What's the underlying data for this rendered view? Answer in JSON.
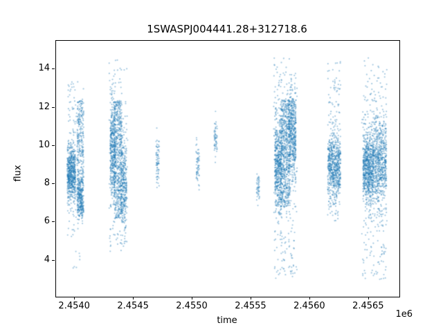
{
  "chart": {
    "title": "1SWASPJ004441.28+312718.6",
    "xlabel": "time",
    "ylabel": "flux",
    "x_offset_text": "1e6"
  },
  "chart_data": {
    "type": "scatter",
    "title": "1SWASPJ004441.28+312718.6",
    "xlabel": "time",
    "ylabel": "flux",
    "x_offset_text": "1e6",
    "xlim": [
      2453840,
      2456760
    ],
    "ylim": [
      2.1,
      15.5
    ],
    "grid": false,
    "legend": "none",
    "marker_color": "#1f77b4",
    "marker_alpha": 0.4,
    "marker_radius_px": 1.1,
    "xticks": {
      "values": [
        2454000,
        2454500,
        2455000,
        2455500,
        2456000,
        2456500
      ],
      "labels": [
        "2.4540",
        "2.4545",
        "2.4550",
        "2.4555",
        "2.4560",
        "2.4565"
      ]
    },
    "yticks": {
      "values": [
        4,
        6,
        8,
        10,
        12,
        14
      ],
      "labels": [
        "4",
        "6",
        "8",
        "10",
        "12",
        "14"
      ]
    },
    "description": "SuperWASP light curve: dense vertical clusters of flux measurements at several observing seasons",
    "clusters": [
      {
        "n": 550,
        "x": [
          2453935,
          2454005
        ],
        "y": {
          "type": "normal",
          "mean": 8.6,
          "sd": 0.7
        }
      },
      {
        "n": 80,
        "x": [
          2453935,
          2454010
        ],
        "y": {
          "type": "uniform",
          "min": 5.2,
          "max": 13.4
        }
      },
      {
        "n": 380,
        "x": [
          2454020,
          2454075
        ],
        "y": {
          "type": "uniform",
          "min": 6.3,
          "max": 12.4
        }
      },
      {
        "n": 180,
        "x": [
          2454020,
          2454070
        ],
        "y": {
          "type": "normal",
          "mean": 7.3,
          "sd": 0.6
        }
      },
      {
        "n": 60,
        "x": [
          2453945,
          2454080
        ],
        "y": {
          "type": "uniform",
          "min": 3.4,
          "max": 13.6
        }
      },
      {
        "n": 420,
        "x": [
          2454300,
          2454345
        ],
        "y": {
          "type": "normal",
          "mean": 9.8,
          "sd": 1.4
        }
      },
      {
        "n": 520,
        "x": [
          2454335,
          2454400
        ],
        "y": {
          "type": "uniform",
          "min": 6.2,
          "max": 12.4
        }
      },
      {
        "n": 320,
        "x": [
          2454390,
          2454440
        ],
        "y": {
          "type": "normal",
          "mean": 8.0,
          "sd": 1.1
        }
      },
      {
        "n": 140,
        "x": [
          2454290,
          2454450
        ],
        "y": {
          "type": "uniform",
          "min": 4.4,
          "max": 14.5
        }
      },
      {
        "n": 70,
        "x": [
          2454690,
          2454720
        ],
        "y": {
          "type": "normal",
          "mean": 9.2,
          "sd": 0.65
        }
      },
      {
        "n": 60,
        "x": [
          2455030,
          2455060
        ],
        "y": {
          "type": "normal",
          "mean": 9.0,
          "sd": 0.5
        }
      },
      {
        "n": 55,
        "x": [
          2455185,
          2455210
        ],
        "y": {
          "type": "normal",
          "mean": 10.4,
          "sd": 0.5
        }
      },
      {
        "n": 45,
        "x": [
          2455545,
          2455570
        ],
        "y": {
          "type": "normal",
          "mean": 7.8,
          "sd": 0.35
        }
      },
      {
        "n": 500,
        "x": [
          2455700,
          2455760
        ],
        "y": {
          "type": "normal",
          "mean": 9.0,
          "sd": 1.2
        }
      },
      {
        "n": 620,
        "x": [
          2455750,
          2455830
        ],
        "y": {
          "type": "uniform",
          "min": 6.8,
          "max": 12.4
        }
      },
      {
        "n": 480,
        "x": [
          2455820,
          2455880
        ],
        "y": {
          "type": "normal",
          "mean": 10.6,
          "sd": 1.2
        }
      },
      {
        "n": 260,
        "x": [
          2455690,
          2455890
        ],
        "y": {
          "type": "uniform",
          "min": 3.0,
          "max": 14.6
        }
      },
      {
        "n": 620,
        "x": [
          2456150,
          2456260
        ],
        "y": {
          "type": "normal",
          "mean": 8.9,
          "sd": 0.85
        }
      },
      {
        "n": 130,
        "x": [
          2456150,
          2456260
        ],
        "y": {
          "type": "uniform",
          "min": 6.1,
          "max": 14.4
        }
      },
      {
        "n": 720,
        "x": [
          2456450,
          2456540
        ],
        "y": {
          "type": "normal",
          "mean": 8.8,
          "sd": 1.0
        }
      },
      {
        "n": 620,
        "x": [
          2456540,
          2456650
        ],
        "y": {
          "type": "normal",
          "mean": 9.2,
          "sd": 1.2
        }
      },
      {
        "n": 240,
        "x": [
          2456440,
          2456655
        ],
        "y": {
          "type": "uniform",
          "min": 2.9,
          "max": 14.6
        }
      }
    ]
  }
}
